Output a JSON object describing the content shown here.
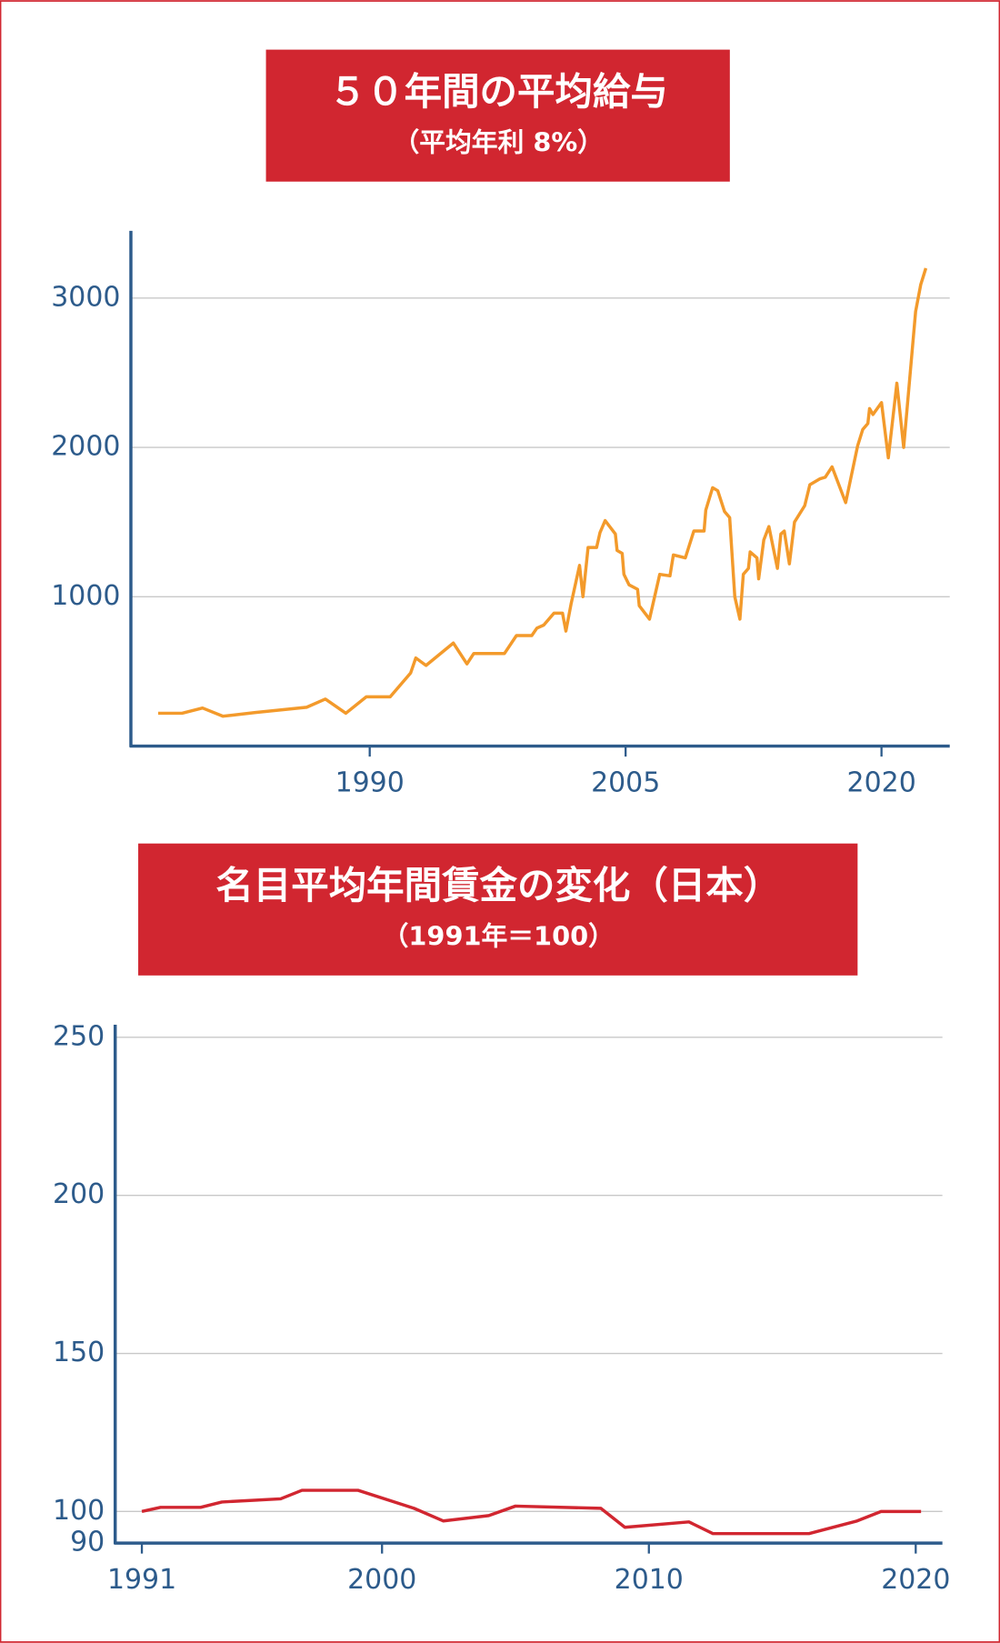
{
  "chart_data": [
    {
      "type": "line",
      "title": "５０年間の平均給与",
      "subtitle": "（平均年利 8%）",
      "x": [
        1977.6,
        1979.0,
        1980.2,
        1981.4,
        1983.3,
        1986.3,
        1987.4,
        1988.6,
        1989.8,
        1991.2,
        1992.4,
        1992.7,
        1993.3,
        1994.9,
        1995.7,
        1996.1,
        1997.9,
        1998.6,
        1999.5,
        1999.8,
        2000.2,
        2000.8,
        2001.3,
        2001.5,
        2001.8,
        2002.3,
        2002.5,
        2002.8,
        2003.3,
        2003.5,
        2003.8,
        2004.4,
        2004.5,
        2004.8,
        2004.9,
        2005.2,
        2005.7,
        2005.8,
        2006.4,
        2007.0,
        2007.6,
        2007.8,
        2008.5,
        2009.0,
        2009.6,
        2009.7,
        2010.1,
        2010.4,
        2010.8,
        2011.1,
        2011.4,
        2011.7,
        2011.9,
        2012.2,
        2012.3,
        2012.7,
        2012.8,
        2013.1,
        2013.4,
        2013.9,
        2014.1,
        2014.3,
        2014.6,
        2014.9,
        2015.5,
        2015.8,
        2016.4,
        2016.7,
        2017.1,
        2017.9,
        2018.6,
        2018.9,
        2019.2,
        2019.3,
        2019.5,
        2020.0,
        2020.4,
        2020.9,
        2021.3,
        2022.0,
        2022.3,
        2022.6
      ],
      "values": [
        220,
        220,
        255,
        200,
        225,
        260,
        315,
        220,
        330,
        330,
        490,
        590,
        540,
        690,
        550,
        620,
        620,
        740,
        740,
        790,
        810,
        890,
        890,
        770,
        950,
        1210,
        1000,
        1330,
        1330,
        1430,
        1510,
        1420,
        1310,
        1290,
        1150,
        1080,
        1050,
        940,
        850,
        1150,
        1140,
        1280,
        1260,
        1440,
        1440,
        1580,
        1730,
        1710,
        1570,
        1530,
        1000,
        850,
        1150,
        1190,
        1300,
        1260,
        1120,
        1380,
        1470,
        1190,
        1420,
        1440,
        1220,
        1500,
        1610,
        1750,
        1790,
        1800,
        1870,
        1630,
        2010,
        2120,
        2160,
        2260,
        2220,
        2300,
        1930,
        2430,
        2000,
        2910,
        3090,
        3200
      ],
      "color": "#f39a2b",
      "xlim": [
        1976,
        2024
      ],
      "xticks": [
        1990,
        2005,
        2020
      ],
      "ylim": [
        0,
        3450
      ],
      "yticks": [
        1000,
        2000,
        3000
      ],
      "grid": true
    },
    {
      "type": "line",
      "title": "名目平均年間賃金の変化（日本）",
      "subtitle": "（1991年＝100）",
      "x": [
        1991,
        1991.7,
        1993.2,
        1994.0,
        1996.2,
        1997.0,
        1999.1,
        2001.2,
        2002.3,
        2004.0,
        2005.0,
        2008.2,
        2009.1,
        2011.5,
        2012.4,
        2016.0,
        2017.8,
        2018.7,
        2020.2
      ],
      "values": [
        100,
        101.3,
        101.3,
        103,
        104,
        106.7,
        106.7,
        101,
        97,
        98.7,
        101.7,
        101,
        95,
        96.7,
        93,
        93,
        97,
        100,
        100
      ],
      "color": "#d12630",
      "xlim": [
        1990,
        2021
      ],
      "xticks": [
        1991,
        2000,
        2010,
        2020
      ],
      "ylim": [
        90,
        254
      ],
      "yticks": [
        90,
        100,
        150,
        200,
        250
      ],
      "grid": true
    }
  ]
}
